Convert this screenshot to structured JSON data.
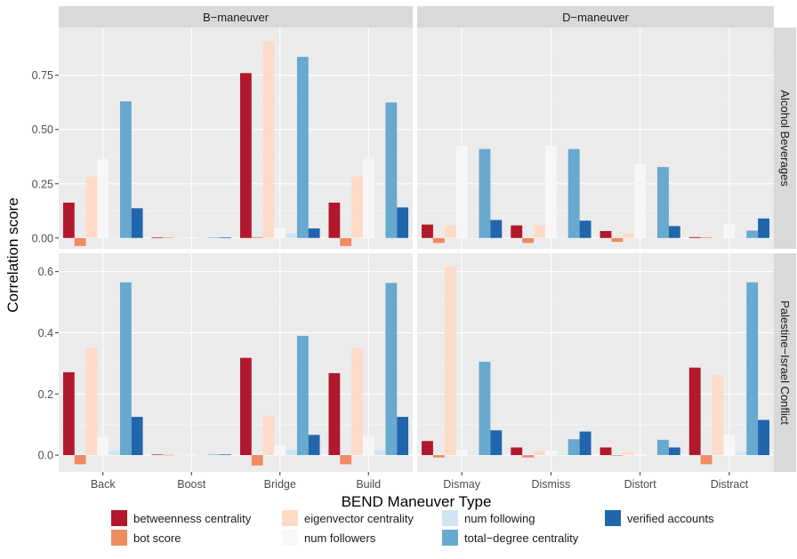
{
  "chart_data": {
    "type": "bar",
    "xlabel": "BEND Maneuver Type",
    "ylabel": "Correlation score",
    "columns": [
      "B−maneuver",
      "D−maneuver"
    ],
    "rows": [
      "Alcohol Beverages",
      "Palestine−Israel Conflict"
    ],
    "categories": [
      [
        "Back",
        "Boost",
        "Bridge",
        "Build"
      ],
      [
        "Dismay",
        "Dismiss",
        "Distort",
        "Distract"
      ]
    ],
    "series": [
      {
        "name": "betweenness centrality",
        "color": "#b2182b"
      },
      {
        "name": "bot score",
        "color": "#ef8a62"
      },
      {
        "name": "eigenvector centrality",
        "color": "#fddbc7"
      },
      {
        "name": "num followers",
        "color": "#f7f7f7"
      },
      {
        "name": "num following",
        "color": "#d1e5f0"
      },
      {
        "name": "total−degree centrality",
        "color": "#67a9cf"
      },
      {
        "name": "verified accounts",
        "color": "#2166ac"
      }
    ],
    "ylim": [
      [
        -0.05,
        0.97
      ],
      [
        -0.055,
        0.66
      ]
    ],
    "yticks": [
      {
        "values": [
          0.0,
          0.25,
          0.5,
          0.75
        ],
        "labels": [
          "0.00",
          "0.25",
          "0.50",
          "0.75"
        ]
      },
      {
        "values": [
          0.0,
          0.2,
          0.4,
          0.6
        ],
        "labels": [
          "0.0",
          "0.2",
          "0.4",
          "0.6"
        ]
      }
    ],
    "panels": [
      {
        "row": 0,
        "col": 0,
        "values": [
          [
            0.163,
            -0.037,
            0.283,
            0.365,
            0.003,
            0.63,
            0.137
          ],
          [
            0.003,
            0.002,
            0.001,
            0.0,
            0.001,
            0.002,
            0.003
          ],
          [
            0.76,
            0.004,
            0.905,
            0.047,
            0.02,
            0.835,
            0.044
          ],
          [
            0.163,
            -0.037,
            0.283,
            0.365,
            0.003,
            0.625,
            0.141
          ]
        ]
      },
      {
        "row": 0,
        "col": 1,
        "values": [
          [
            0.062,
            -0.023,
            0.058,
            0.425,
            0.002,
            0.41,
            0.083
          ],
          [
            0.058,
            -0.023,
            0.058,
            0.425,
            0.002,
            0.41,
            0.08
          ],
          [
            0.032,
            -0.018,
            0.02,
            0.34,
            0.002,
            0.327,
            0.055
          ],
          [
            0.004,
            0.003,
            0.001,
            0.065,
            0.004,
            0.034,
            0.09
          ]
        ]
      },
      {
        "row": 1,
        "col": 0,
        "values": [
          [
            0.271,
            -0.03,
            0.349,
            0.06,
            0.015,
            0.565,
            0.125
          ],
          [
            0.002,
            0.001,
            0.001,
            0.0,
            0.001,
            0.002,
            0.002
          ],
          [
            0.318,
            -0.034,
            0.128,
            0.032,
            0.018,
            0.39,
            0.066
          ],
          [
            0.268,
            -0.03,
            0.349,
            0.06,
            0.015,
            0.563,
            0.125
          ]
        ]
      },
      {
        "row": 1,
        "col": 1,
        "values": [
          [
            0.046,
            -0.008,
            0.615,
            0.018,
            0.002,
            0.305,
            0.081
          ],
          [
            0.025,
            -0.008,
            0.013,
            0.015,
            0.002,
            0.052,
            0.077
          ],
          [
            0.025,
            -0.002,
            0.01,
            0.003,
            0.001,
            0.05,
            0.025
          ],
          [
            0.286,
            -0.03,
            0.262,
            0.067,
            0.012,
            0.565,
            0.115
          ]
        ]
      }
    ],
    "grid": true,
    "legend_position": "bottom"
  }
}
